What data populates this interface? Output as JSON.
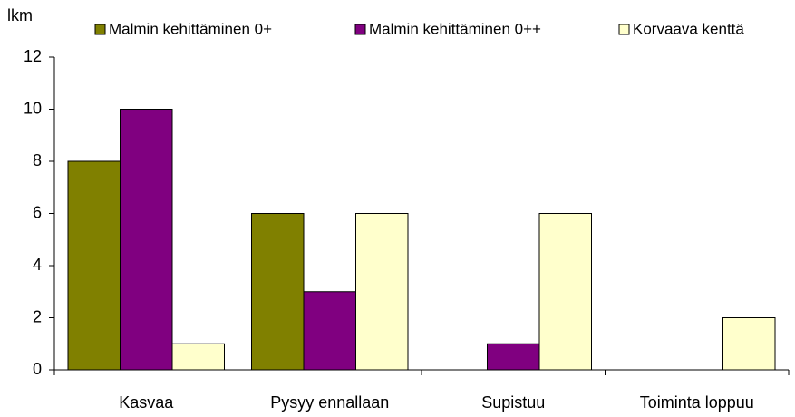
{
  "chart_data": {
    "type": "bar",
    "y_label": "lkm",
    "categories": [
      "Kasvaa",
      "Pysyy ennallaan",
      "Supistuu",
      "Toiminta loppuu"
    ],
    "series": [
      {
        "name": "Malmin kehittäminen 0+",
        "color": "#808000",
        "values": [
          8,
          6,
          0,
          0
        ]
      },
      {
        "name": "Malmin kehittäminen 0++",
        "color": "#800080",
        "values": [
          10,
          3,
          1,
          0
        ]
      },
      {
        "name": "Korvaava kenttä",
        "color": "#FFFFCC",
        "values": [
          1,
          6,
          6,
          2
        ]
      }
    ],
    "ylim": [
      0,
      12
    ],
    "yticks": [
      0,
      2,
      4,
      6,
      8,
      10,
      12
    ],
    "grid": false,
    "legend": "top"
  }
}
